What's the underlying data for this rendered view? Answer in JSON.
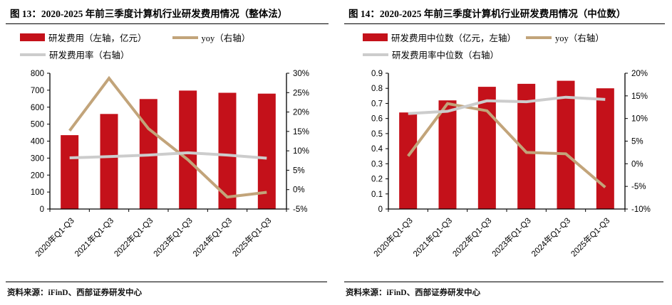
{
  "colors": {
    "bar_red": "#c4111a",
    "yoy_tan": "#c2a47a",
    "ratio_gray": "#cccccc",
    "axis_black": "#000000"
  },
  "chart_data": [
    {
      "type": "bar",
      "title": "图 13：2020-2025 年前三季度计算机行业研发费用情况（整体法）",
      "source": "资料来源：iFinD、西部证券研发中心",
      "categories": [
        "2020年Q1-Q3",
        "2021年Q1-Q3",
        "2022年Q1-Q3",
        "2023年Q1-Q3",
        "2024年Q1-Q3",
        "2025年Q1-Q3"
      ],
      "left_axis": {
        "min": 0,
        "max": 800,
        "step": 100,
        "format": "int"
      },
      "right_axis": {
        "min": -5,
        "max": 30,
        "step": 5,
        "format": "percent"
      },
      "grid": false,
      "legend_position": "top",
      "series": [
        {
          "key": "rd-expense-bars",
          "name": "研发费用（左轴，亿元）",
          "type": "bar",
          "axis": "left",
          "color": "#c4111a",
          "values": [
            435,
            560,
            648,
            698,
            685,
            680
          ]
        },
        {
          "key": "yoy-line",
          "name": "yoy（右轴）",
          "type": "line",
          "axis": "right",
          "color": "#c2a47a",
          "values": [
            15.2,
            28.7,
            15.7,
            7.7,
            -1.9,
            -0.7
          ]
        },
        {
          "key": "expense-ratio-line",
          "name": "研发费用率（右轴）",
          "type": "line",
          "axis": "right",
          "color": "#cccccc",
          "values": [
            8.2,
            8.5,
            8.9,
            9.5,
            8.9,
            8.1
          ]
        }
      ]
    },
    {
      "type": "bar",
      "title": "图 14：2020-2025 年前三季度计算机行业研发费用情况（中位数）",
      "source": "资料来源：iFinD、西部证券研发中心",
      "categories": [
        "2020年Q1-Q3",
        "2021年Q1-Q3",
        "2022年Q1-Q3",
        "2023年Q1-Q3",
        "2024年Q1-Q3",
        "2025年Q1-Q3"
      ],
      "left_axis": {
        "min": 0,
        "max": 0.9,
        "step": 0.1,
        "format": "dec1"
      },
      "right_axis": {
        "min": -10,
        "max": 20,
        "step": 5,
        "format": "percent"
      },
      "grid": false,
      "legend_position": "top",
      "series": [
        {
          "key": "rd-expense-median-bars",
          "name": "研发费用中位数（亿元，左轴）",
          "type": "bar",
          "axis": "left",
          "color": "#c4111a",
          "values": [
            0.64,
            0.72,
            0.81,
            0.83,
            0.85,
            0.8
          ]
        },
        {
          "key": "yoy-line",
          "name": "yoy（右轴）",
          "type": "line",
          "axis": "right",
          "color": "#c2a47a",
          "values": [
            1.7,
            13.3,
            11.7,
            2.5,
            2.2,
            -5.2
          ]
        },
        {
          "key": "expense-ratio-median-line",
          "name": "研发费用率中位数（右轴）",
          "type": "line",
          "axis": "right",
          "color": "#cccccc",
          "values": [
            11.1,
            11.6,
            13.9,
            13.7,
            14.7,
            14.2
          ]
        }
      ]
    }
  ]
}
